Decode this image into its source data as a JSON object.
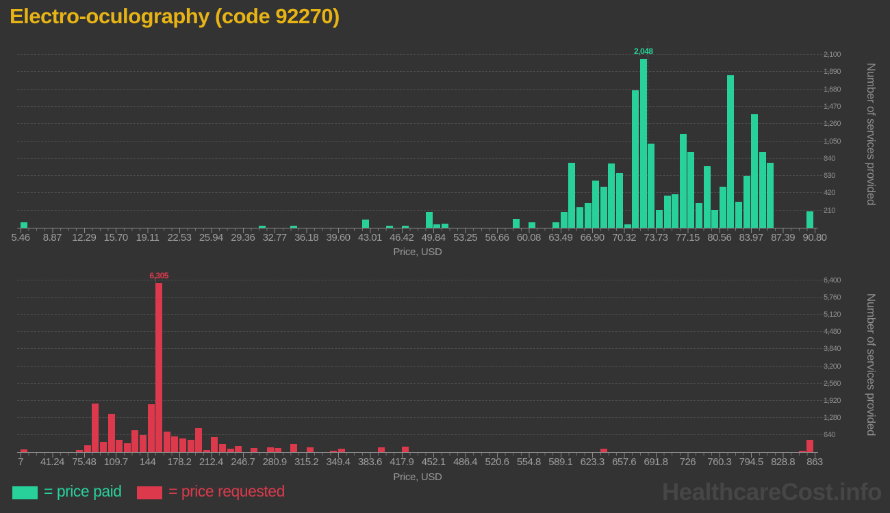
{
  "title": "Electro-oculography (code 92270)",
  "watermark": "HealthcareCost.info",
  "background_color": "#333333",
  "title_color": "#e8b415",
  "chart_data": [
    {
      "type": "bar",
      "name": "price paid",
      "legend_label": "= price paid",
      "color": "#28d19a",
      "xlabel": "Price, USD",
      "ylabel": "Number of services provided",
      "x_range": [
        5.46,
        90.8
      ],
      "x_tick_labels": [
        "5.46",
        "8.87",
        "12.29",
        "15.70",
        "19.11",
        "22.53",
        "25.94",
        "29.36",
        "32.77",
        "36.18",
        "39.60",
        "43.01",
        "46.42",
        "49.84",
        "53.25",
        "56.66",
        "60.08",
        "63.49",
        "66.90",
        "70.32",
        "73.73",
        "77.15",
        "80.56",
        "83.97",
        "87.39",
        "90.80"
      ],
      "y_tick_labels": [
        "210",
        "420",
        "630",
        "840",
        "1,050",
        "1,260",
        "1,470",
        "1,680",
        "1,890",
        "2,100"
      ],
      "ylim": [
        0,
        2100
      ],
      "bins": 100,
      "grid": true,
      "legend_position": "bottom",
      "peak_annotation": {
        "bin": 78,
        "text": "2,048"
      },
      "marker_bin": 79,
      "bars": [
        [
          0,
          70
        ],
        [
          30,
          25
        ],
        [
          34,
          25
        ],
        [
          43,
          100
        ],
        [
          46,
          25
        ],
        [
          48,
          25
        ],
        [
          51,
          190
        ],
        [
          52,
          40
        ],
        [
          53,
          50
        ],
        [
          62,
          105
        ],
        [
          64,
          65
        ],
        [
          67,
          70
        ],
        [
          68,
          195
        ],
        [
          69,
          790
        ],
        [
          70,
          250
        ],
        [
          71,
          295
        ],
        [
          72,
          570
        ],
        [
          73,
          495
        ],
        [
          74,
          780
        ],
        [
          75,
          665
        ],
        [
          76,
          40
        ],
        [
          77,
          1670
        ],
        [
          78,
          2048
        ],
        [
          79,
          1020
        ],
        [
          80,
          215
        ],
        [
          81,
          390
        ],
        [
          82,
          405
        ],
        [
          83,
          1140
        ],
        [
          84,
          920
        ],
        [
          85,
          300
        ],
        [
          86,
          745
        ],
        [
          87,
          215
        ],
        [
          88,
          500
        ],
        [
          89,
          1850
        ],
        [
          90,
          315
        ],
        [
          91,
          630
        ],
        [
          92,
          1375
        ],
        [
          93,
          920
        ],
        [
          94,
          790
        ],
        [
          99,
          200
        ]
      ]
    },
    {
      "type": "bar",
      "name": "price requested",
      "legend_label": "= price requested",
      "color": "#dc3a4c",
      "xlabel": "Price, USD",
      "ylabel": "Number of services provided",
      "x_range": [
        7,
        863
      ],
      "x_tick_labels": [
        "7",
        "41.24",
        "75.48",
        "109.7",
        "144",
        "178.2",
        "212.4",
        "246.7",
        "280.9",
        "315.2",
        "349.4",
        "383.6",
        "417.9",
        "452.1",
        "486.4",
        "520.6",
        "554.8",
        "589.1",
        "623.3",
        "657.6",
        "691.8",
        "726",
        "760.3",
        "794.5",
        "828.8",
        "863"
      ],
      "y_tick_labels": [
        "640",
        "1,280",
        "1,920",
        "2,560",
        "3,200",
        "3,840",
        "4,480",
        "5,120",
        "5,760",
        "6,400"
      ],
      "ylim": [
        0,
        6400
      ],
      "bins": 100,
      "grid": true,
      "legend_position": "bottom",
      "peak_annotation": {
        "bin": 17,
        "text": "6,305"
      },
      "marker_bin": 17,
      "bars": [
        [
          0,
          100
        ],
        [
          7,
          80
        ],
        [
          8,
          255
        ],
        [
          9,
          1800
        ],
        [
          10,
          380
        ],
        [
          11,
          1440
        ],
        [
          12,
          465
        ],
        [
          13,
          340
        ],
        [
          14,
          805
        ],
        [
          15,
          635
        ],
        [
          16,
          1780
        ],
        [
          17,
          6305
        ],
        [
          18,
          765
        ],
        [
          19,
          590
        ],
        [
          20,
          510
        ],
        [
          21,
          465
        ],
        [
          22,
          890
        ],
        [
          23,
          70
        ],
        [
          24,
          550
        ],
        [
          25,
          300
        ],
        [
          26,
          130
        ],
        [
          27,
          240
        ],
        [
          29,
          150
        ],
        [
          31,
          180
        ],
        [
          32,
          165
        ],
        [
          34,
          295
        ],
        [
          36,
          180
        ],
        [
          39,
          50
        ],
        [
          40,
          125
        ],
        [
          45,
          180
        ],
        [
          48,
          210
        ],
        [
          73,
          130
        ],
        [
          98,
          50
        ],
        [
          99,
          460
        ]
      ]
    }
  ]
}
